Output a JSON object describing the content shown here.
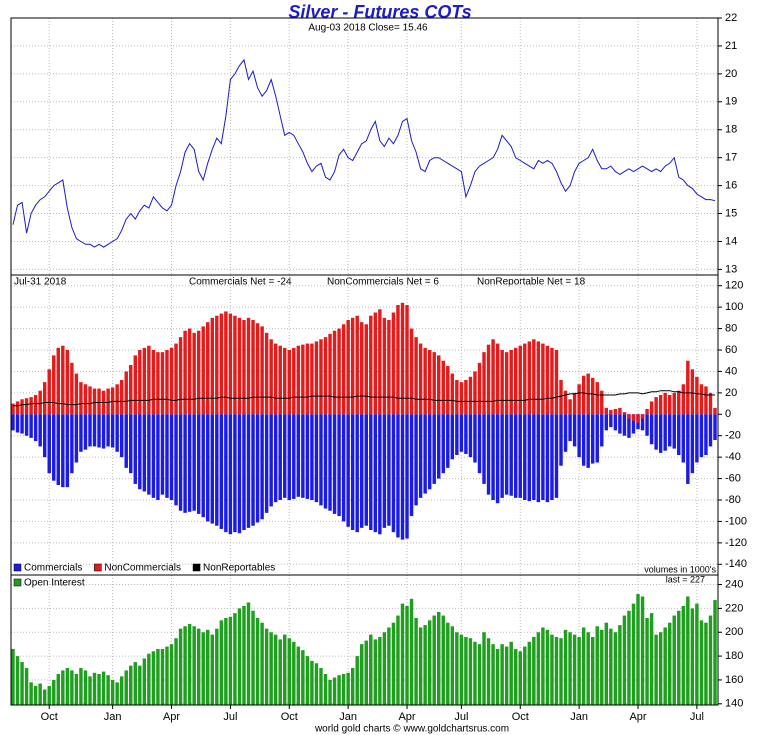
{
  "title": "Silver - Futures COTs",
  "subtitle": "Aug-03  2018   Close= 15.46",
  "footer": "world gold charts © www.goldchartsrus.com",
  "chart_data": [
    {
      "type": "line",
      "color": "#1a1acc",
      "grid": true,
      "ylim": [
        12.8,
        22
      ],
      "yticks": [
        13,
        14,
        15,
        16,
        17,
        18,
        19,
        20,
        21,
        22
      ],
      "values": [
        14.6,
        15.3,
        15.4,
        14.3,
        15.0,
        15.3,
        15.5,
        15.6,
        15.8,
        16.0,
        16.1,
        16.2,
        15.2,
        14.5,
        14.1,
        14.0,
        13.9,
        13.9,
        13.8,
        13.9,
        13.8,
        13.9,
        14.0,
        14.1,
        14.4,
        14.8,
        15.0,
        14.8,
        15.1,
        15.3,
        15.2,
        15.6,
        15.4,
        15.2,
        15.1,
        15.3,
        16.0,
        16.5,
        17.2,
        17.5,
        17.3,
        16.5,
        16.2,
        16.8,
        17.3,
        17.7,
        17.5,
        18.5,
        19.8,
        20.0,
        20.3,
        20.5,
        19.8,
        20.1,
        19.5,
        19.2,
        19.4,
        19.8,
        19.2,
        18.5,
        17.8,
        17.9,
        17.8,
        17.5,
        17.2,
        16.8,
        16.5,
        16.7,
        16.8,
        16.3,
        16.2,
        16.5,
        17.1,
        17.3,
        17.0,
        16.9,
        17.2,
        17.5,
        17.6,
        18.0,
        18.3,
        17.6,
        17.4,
        17.7,
        17.5,
        17.8,
        18.3,
        18.4,
        17.6,
        17.2,
        16.6,
        16.5,
        16.9,
        17.0,
        17.0,
        16.9,
        16.8,
        16.7,
        16.6,
        16.5,
        15.6,
        16.0,
        16.5,
        16.7,
        16.8,
        16.9,
        17.0,
        17.3,
        17.8,
        17.6,
        17.4,
        17.0,
        16.9,
        16.8,
        16.7,
        16.6,
        16.9,
        16.8,
        16.9,
        16.8,
        16.5,
        16.1,
        15.8,
        16.0,
        16.5,
        16.8,
        16.9,
        17.0,
        17.3,
        16.9,
        16.6,
        16.6,
        16.7,
        16.5,
        16.4,
        16.5,
        16.6,
        16.5,
        16.6,
        16.7,
        16.6,
        16.5,
        16.6,
        16.5,
        16.7,
        16.8,
        17.0,
        16.3,
        16.2,
        16.0,
        15.9,
        15.7,
        15.6,
        15.5,
        15.5,
        15.46
      ]
    },
    {
      "type": "bar",
      "grid": true,
      "legend": "lower left",
      "date_label": "Jul-31  2018",
      "annotations": [
        "Commercials Net = -24",
        "NonCommercials Net = 6",
        "NonReportable Net = 18"
      ],
      "ylim": [
        -150,
        130
      ],
      "yticks": [
        -140,
        -120,
        -100,
        -80,
        -60,
        -40,
        -20,
        0,
        20,
        40,
        60,
        80,
        100,
        120
      ],
      "series": [
        {
          "name": "Commercials",
          "color": "#1c1ce0",
          "type": "bar",
          "values": [
            -15,
            -17,
            -18,
            -20,
            -22,
            -25,
            -30,
            -40,
            -55,
            -62,
            -66,
            -68,
            -68,
            -55,
            -45,
            -35,
            -33,
            -30,
            -30,
            -31,
            -32,
            -30,
            -31,
            -35,
            -40,
            -50,
            -55,
            -65,
            -70,
            -72,
            -75,
            -78,
            -80,
            -75,
            -78,
            -80,
            -85,
            -90,
            -92,
            -91,
            -90,
            -93,
            -96,
            -100,
            -102,
            -104,
            -107,
            -110,
            -112,
            -110,
            -111,
            -108,
            -106,
            -104,
            -101,
            -98,
            -92,
            -86,
            -82,
            -80,
            -78,
            -80,
            -79,
            -77,
            -78,
            -79,
            -80,
            -82,
            -85,
            -88,
            -90,
            -93,
            -95,
            -100,
            -105,
            -108,
            -110,
            -106,
            -104,
            -108,
            -110,
            -112,
            -106,
            -104,
            -110,
            -115,
            -117,
            -116,
            -95,
            -85,
            -78,
            -74,
            -70,
            -65,
            -60,
            -55,
            -50,
            -42,
            -38,
            -35,
            -37,
            -40,
            -45,
            -55,
            -65,
            -75,
            -80,
            -83,
            -78,
            -75,
            -76,
            -78,
            -78,
            -80,
            -81,
            -80,
            -82,
            -80,
            -82,
            -80,
            -78,
            -48,
            -35,
            -25,
            -30,
            -40,
            -48,
            -50,
            -46,
            -45,
            -30,
            -15,
            -12,
            -15,
            -18,
            -20,
            -22,
            -18,
            -14,
            -15,
            -20,
            -28,
            -33,
            -36,
            -34,
            -30,
            -32,
            -38,
            -45,
            -65,
            -55,
            -45,
            -40,
            -38,
            -30,
            -24
          ]
        },
        {
          "name": "NonCommercials",
          "color": "#e01c1c",
          "type": "bar",
          "values": [
            10,
            12,
            14,
            15,
            16,
            18,
            22,
            30,
            42,
            55,
            62,
            64,
            60,
            48,
            38,
            30,
            28,
            26,
            24,
            24,
            22,
            24,
            25,
            28,
            32,
            40,
            46,
            55,
            60,
            62,
            64,
            60,
            58,
            58,
            60,
            62,
            66,
            72,
            78,
            80,
            76,
            78,
            82,
            86,
            90,
            92,
            94,
            96,
            94,
            92,
            90,
            88,
            90,
            88,
            85,
            82,
            76,
            70,
            66,
            64,
            62,
            60,
            62,
            64,
            65,
            66,
            66,
            68,
            70,
            72,
            75,
            78,
            80,
            84,
            88,
            90,
            92,
            86,
            84,
            92,
            95,
            98,
            90,
            88,
            95,
            102,
            104,
            102,
            80,
            72,
            66,
            62,
            60,
            58,
            55,
            50,
            45,
            38,
            32,
            30,
            32,
            35,
            40,
            48,
            58,
            65,
            70,
            66,
            60,
            58,
            60,
            62,
            64,
            66,
            68,
            70,
            68,
            66,
            64,
            62,
            60,
            32,
            22,
            14,
            20,
            28,
            36,
            38,
            34,
            30,
            22,
            6,
            4,
            5,
            6,
            2,
            -4,
            -6,
            -8,
            -4,
            5,
            12,
            16,
            18,
            20,
            18,
            20,
            22,
            28,
            50,
            42,
            35,
            28,
            26,
            20,
            6
          ]
        },
        {
          "name": "NonReportables",
          "color": "#000000",
          "type": "line",
          "values": [
            8,
            8,
            9,
            9,
            10,
            10,
            10,
            11,
            11,
            11,
            10,
            10,
            9,
            9,
            9,
            10,
            10,
            10,
            11,
            11,
            11,
            11,
            12,
            12,
            12,
            12,
            13,
            13,
            13,
            13,
            13,
            14,
            14,
            14,
            14,
            13,
            13,
            14,
            14,
            14,
            14,
            15,
            15,
            15,
            15,
            15,
            16,
            16,
            15,
            15,
            15,
            15,
            15,
            16,
            16,
            16,
            16,
            16,
            15,
            15,
            15,
            15,
            16,
            16,
            16,
            16,
            17,
            17,
            17,
            17,
            17,
            16,
            16,
            16,
            16,
            16,
            17,
            17,
            17,
            16,
            16,
            16,
            16,
            16,
            16,
            15,
            15,
            15,
            15,
            14,
            14,
            14,
            14,
            13,
            13,
            13,
            13,
            13,
            12,
            12,
            12,
            12,
            12,
            12,
            12,
            12,
            12,
            13,
            13,
            13,
            13,
            13,
            13,
            13,
            14,
            14,
            14,
            14,
            15,
            15,
            16,
            17,
            18,
            19,
            19,
            20,
            20,
            19,
            19,
            18,
            18,
            18,
            18,
            18,
            19,
            19,
            20,
            20,
            20,
            19,
            20,
            21,
            21,
            22,
            22,
            22,
            21,
            21,
            20,
            20,
            20,
            19,
            19,
            18,
            18,
            18
          ]
        }
      ]
    },
    {
      "type": "bar",
      "grid": true,
      "legend": "upper left",
      "note": "volumes in 1000's",
      "last_label": "last = 227",
      "ylim": [
        139,
        248
      ],
      "yticks": [
        140,
        160,
        180,
        200,
        220,
        240
      ],
      "categories": [
        null,
        null,
        null,
        null,
        null,
        null,
        null,
        null,
        "Oct",
        null,
        null,
        null,
        null,
        null,
        null,
        null,
        null,
        null,
        null,
        null,
        null,
        null,
        "Jan",
        null,
        null,
        null,
        null,
        null,
        null,
        null,
        null,
        null,
        null,
        null,
        null,
        "Apr",
        null,
        null,
        null,
        null,
        null,
        null,
        null,
        null,
        null,
        null,
        null,
        null,
        "Jul",
        null,
        null,
        null,
        null,
        null,
        null,
        null,
        null,
        null,
        null,
        null,
        null,
        "Oct",
        null,
        null,
        null,
        null,
        null,
        null,
        null,
        null,
        null,
        null,
        null,
        null,
        "Jan",
        null,
        null,
        null,
        null,
        null,
        null,
        null,
        null,
        null,
        null,
        null,
        null,
        "Apr",
        null,
        null,
        null,
        null,
        null,
        null,
        null,
        null,
        null,
        null,
        null,
        "Jul",
        null,
        null,
        null,
        null,
        null,
        null,
        null,
        null,
        null,
        null,
        null,
        null,
        "Oct",
        null,
        null,
        null,
        null,
        null,
        null,
        null,
        null,
        null,
        null,
        null,
        null,
        "Jan",
        null,
        null,
        null,
        null,
        null,
        null,
        null,
        null,
        null,
        null,
        null,
        null,
        "Apr",
        null,
        null,
        null,
        null,
        null,
        null,
        null,
        null,
        null,
        null,
        null,
        null,
        "Jul",
        null,
        null,
        null,
        null
      ],
      "series": [
        {
          "name": "Open Interest",
          "color": "#1f9e1f",
          "type": "bar",
          "values": [
            186,
            180,
            175,
            170,
            158,
            155,
            157,
            152,
            155,
            160,
            165,
            168,
            170,
            168,
            165,
            170,
            168,
            163,
            166,
            165,
            167,
            164,
            160,
            158,
            163,
            168,
            172,
            175,
            172,
            178,
            182,
            184,
            186,
            186,
            188,
            190,
            195,
            203,
            205,
            207,
            205,
            203,
            200,
            202,
            198,
            203,
            210,
            212,
            213,
            216,
            220,
            222,
            225,
            218,
            212,
            208,
            203,
            200,
            198,
            194,
            198,
            195,
            192,
            188,
            185,
            180,
            176,
            174,
            170,
            165,
            160,
            162,
            164,
            165,
            166,
            170,
            180,
            190,
            193,
            198,
            194,
            196,
            200,
            204,
            208,
            214,
            224,
            222,
            228,
            212,
            204,
            206,
            210,
            214,
            217,
            214,
            208,
            205,
            200,
            198,
            196,
            195,
            192,
            190,
            200,
            195,
            190,
            186,
            190,
            188,
            192,
            186,
            184,
            188,
            192,
            196,
            200,
            204,
            202,
            198,
            196,
            195,
            202,
            200,
            198,
            196,
            204,
            200,
            196,
            205,
            202,
            208,
            203,
            200,
            206,
            214,
            218,
            224,
            232,
            230,
            212,
            216,
            198,
            200,
            204,
            208,
            214,
            218,
            222,
            230,
            220,
            224,
            210,
            208,
            214,
            227
          ]
        }
      ]
    }
  ]
}
